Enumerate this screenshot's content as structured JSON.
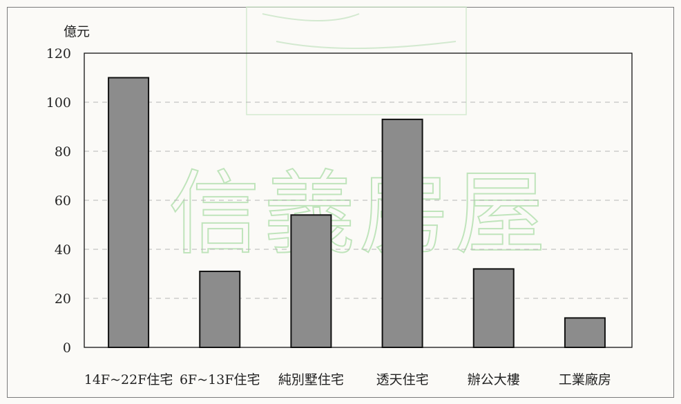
{
  "chart_data": {
    "type": "bar",
    "title": "",
    "xlabel": "",
    "ylabel": "億元",
    "ylim": [
      0,
      120
    ],
    "yticks": [
      0,
      20,
      40,
      60,
      80,
      100,
      120
    ],
    "grid": true,
    "categories": [
      "14F~22F住宅",
      "6F~13F住宅",
      "純別墅住宅",
      "透天住宅",
      "辦公大樓",
      "工業廠房"
    ],
    "values": [
      110,
      31,
      54,
      93,
      32,
      12
    ],
    "colors": {
      "bar": "#8c8c8c",
      "bar_stroke": "#111111",
      "axis": "#111111",
      "grid": "#b5b5b5"
    }
  },
  "watermark": "信義房屋"
}
